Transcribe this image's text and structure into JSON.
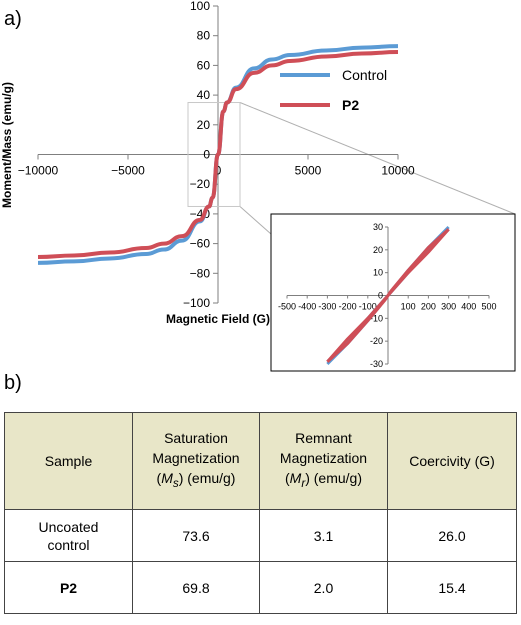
{
  "panel_a_label": "a)",
  "panel_b_label": "b)",
  "chart_data": [
    {
      "type": "line",
      "xlabel": "Magnetic Field (G)",
      "ylabel": "Moment/Mass (emu/g)",
      "xlim": [
        -10000,
        10000
      ],
      "ylim": [
        -100,
        100
      ],
      "x_ticks": [
        -10000,
        -5000,
        0,
        5000,
        10000
      ],
      "y_ticks": [
        -100,
        -80,
        -60,
        -40,
        -20,
        0,
        20,
        40,
        60,
        80,
        100
      ],
      "legend_position": "right",
      "series": [
        {
          "name": "Control",
          "color": "#5b9bd5",
          "x": [
            -10000,
            -8000,
            -6000,
            -4000,
            -3000,
            -2000,
            -1000,
            -500,
            -300,
            0,
            300,
            500,
            1000,
            2000,
            3000,
            4000,
            6000,
            8000,
            10000
          ],
          "y": [
            -73,
            -72,
            -70,
            -67,
            -64,
            -58,
            -45,
            -35,
            -29,
            0,
            29,
            35,
            45,
            58,
            64,
            67,
            70,
            72,
            73
          ]
        },
        {
          "name": "P2",
          "color": "#cf4e57",
          "x": [
            -10000,
            -8000,
            -6000,
            -4000,
            -3000,
            -2000,
            -1000,
            -500,
            -300,
            0,
            300,
            500,
            1000,
            2000,
            3000,
            4000,
            6000,
            8000,
            10000
          ],
          "y": [
            -69,
            -68,
            -66,
            -63,
            -60,
            -55,
            -44,
            -35,
            -29,
            0,
            29,
            35,
            44,
            55,
            60,
            63,
            66,
            68,
            69
          ]
        }
      ]
    },
    {
      "type": "line",
      "role": "inset (zoom near origin)",
      "xlim": [
        -500,
        500
      ],
      "ylim": [
        -30,
        30
      ],
      "x_ticks": [
        -500,
        -400,
        -300,
        -200,
        -100,
        0,
        100,
        200,
        300,
        400,
        500
      ],
      "y_ticks": [
        -30,
        -20,
        -10,
        0,
        10,
        20,
        30
      ],
      "series": [
        {
          "name": "Control",
          "color": "#5b9bd5",
          "upper_branch": {
            "x": [
              -300,
              -200,
              -100,
              -26,
              0,
              100,
              200,
              300
            ],
            "y": [
              -30,
              -21,
              -11,
              -3,
              0,
              10,
              20,
              29
            ]
          },
          "lower_branch": {
            "x": [
              -300,
              -200,
              -100,
              0,
              26,
              100,
              200,
              300
            ],
            "y": [
              -29,
              -20,
              -10,
              0,
              3,
              11,
              21,
              30
            ]
          }
        },
        {
          "name": "P2",
          "color": "#cf4e57",
          "upper_branch": {
            "x": [
              -300,
              -200,
              -100,
              -15,
              0,
              100,
              200,
              300
            ],
            "y": [
              -29,
              -21,
              -11,
              -2,
              0,
              10,
              19,
              29
            ]
          },
          "lower_branch": {
            "x": [
              -300,
              -200,
              -100,
              0,
              15,
              100,
              200,
              300
            ],
            "y": [
              -29,
              -19,
              -10,
              0,
              2,
              11,
              21,
              29
            ]
          }
        }
      ]
    }
  ],
  "table": {
    "headers": {
      "sample": "Sample",
      "ms_line1": "Saturation",
      "ms_line2": "Magnetization",
      "ms_sym": "M",
      "ms_sub": "s",
      "ms_unit": ") (emu/g)",
      "mr_line1": "Remnant",
      "mr_line2": "Magnetization",
      "mr_sym": "M",
      "mr_sub": "r",
      "mr_unit": ") (emu/g)",
      "coercivity": "Coercivity (G)"
    },
    "rows": [
      {
        "sample_line1": "Uncoated",
        "sample_line2": "control",
        "ms": "73.6",
        "mr": "3.1",
        "hc": "26.0"
      },
      {
        "sample": "P2",
        "ms": "69.8",
        "mr": "2.0",
        "hc": "15.4"
      }
    ]
  }
}
